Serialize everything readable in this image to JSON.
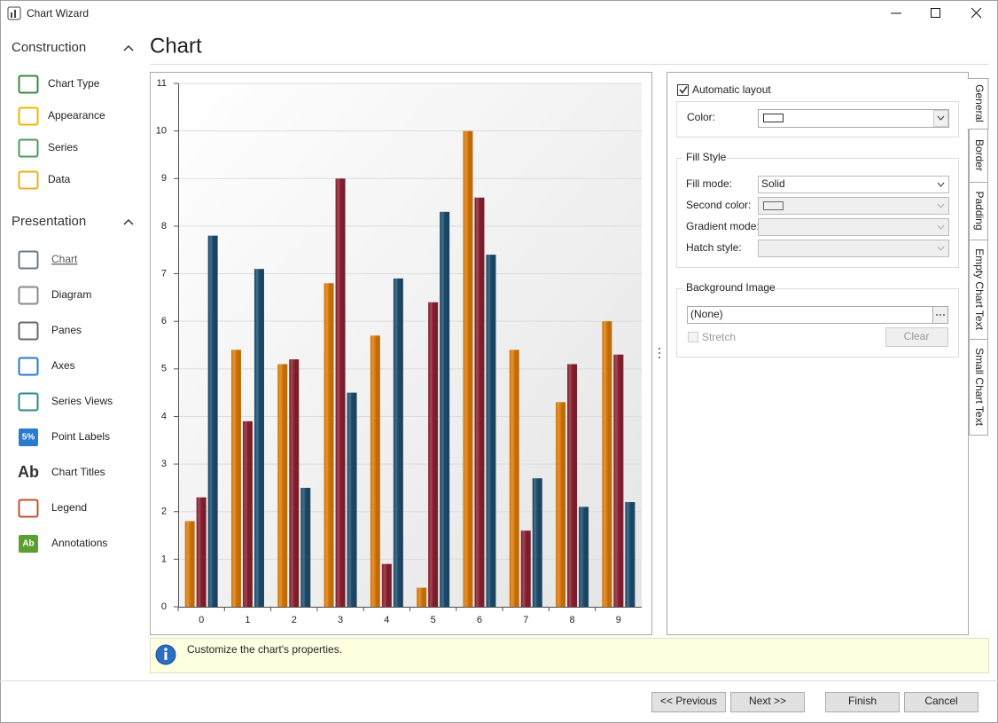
{
  "window": {
    "title": "Chart Wizard"
  },
  "sidebar": {
    "groups": [
      {
        "title": "Construction",
        "items": [
          {
            "label": "Chart Type"
          },
          {
            "label": "Appearance"
          },
          {
            "label": "Series"
          },
          {
            "label": "Data"
          }
        ]
      },
      {
        "title": "Presentation",
        "items": [
          {
            "label": "Chart"
          },
          {
            "label": "Diagram"
          },
          {
            "label": "Panes"
          },
          {
            "label": "Axes"
          },
          {
            "label": "Series Views"
          },
          {
            "label": "Point Labels",
            "icon_text": "5%"
          },
          {
            "label": "Chart Titles",
            "icon_text": "Ab"
          },
          {
            "label": "Legend"
          },
          {
            "label": "Annotations",
            "icon_text": "Ab"
          }
        ]
      }
    ]
  },
  "page": {
    "title": "Chart"
  },
  "chart_data": {
    "type": "bar",
    "categories": [
      "0",
      "1",
      "2",
      "3",
      "4",
      "5",
      "6",
      "7",
      "8",
      "9"
    ],
    "series": [
      {
        "color": "#d97a0c",
        "values": [
          1.8,
          5.4,
          5.1,
          6.8,
          5.7,
          0.4,
          10.0,
          5.4,
          4.3,
          6.0
        ]
      },
      {
        "color": "#8b2332",
        "values": [
          2.3,
          3.9,
          5.2,
          9.0,
          0.9,
          6.4,
          8.6,
          1.6,
          5.1,
          5.3
        ]
      },
      {
        "color": "#1f4e6e",
        "values": [
          7.8,
          7.1,
          2.5,
          4.5,
          6.9,
          8.3,
          7.4,
          2.7,
          2.1,
          2.2
        ]
      }
    ],
    "ylim": [
      0,
      11
    ],
    "yticks": [
      0,
      1,
      2,
      3,
      4,
      5,
      6,
      7,
      8,
      9,
      10,
      11
    ],
    "grid": true
  },
  "properties": {
    "automatic_layout": "Automatic layout",
    "color_label": "Color:",
    "fill_style": {
      "title": "Fill Style",
      "fields": [
        {
          "label": "Fill mode:",
          "value": "Solid"
        },
        {
          "label": "Second color:"
        },
        {
          "label": "Gradient mode:"
        },
        {
          "label": "Hatch style:"
        }
      ]
    },
    "background_image": {
      "title": "Background Image",
      "value": "(None)",
      "stretch": "Stretch",
      "clear": "Clear"
    }
  },
  "tabs": [
    "General",
    "Border",
    "Padding",
    "Empty Chart Text",
    "Small Chart Text"
  ],
  "info": "Customize the chart's properties.",
  "buttons": [
    "<< Previous",
    "Next >>",
    "Finish",
    "Cancel"
  ]
}
